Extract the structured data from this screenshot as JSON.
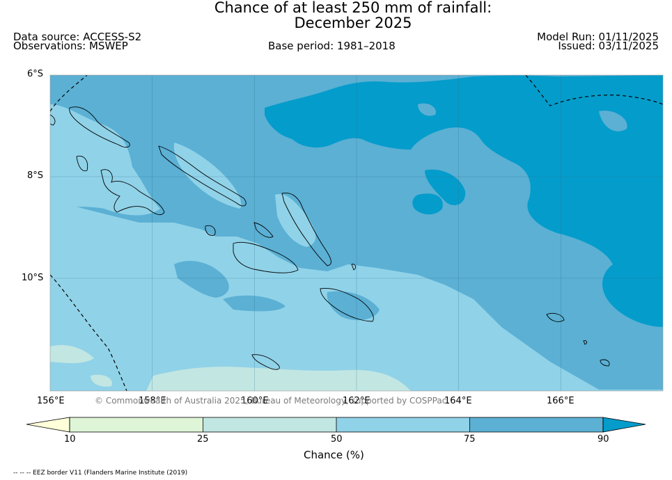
{
  "title": {
    "line1": "Chance of at least 250 mm of rainfall:",
    "line2": "December 2025"
  },
  "meta": {
    "data_source": "Data source: ACCESS-S2",
    "observations": "Observations: MSWEP",
    "base_period": "Base period: 1981–2018",
    "model_run": "Model Run: 01/11/2025",
    "issued": "Issued: 03/11/2025"
  },
  "map": {
    "lat_labels": [
      "6°S",
      "8°S",
      "10°S"
    ],
    "lon_labels": [
      "156°E",
      "158°E",
      "160°E",
      "162°E",
      "164°E",
      "166°E"
    ],
    "credit": "© Commonwealth of Australia 2025, Bureau of Meteorology, supported by COSPPac",
    "colors": {
      "c_10_25": "#dff5d8",
      "c_25_50": "#c2e6e2",
      "c_50_75": "#90d2e8",
      "c_75_90": "#5bb0d4",
      "c_90_plus": "#049ccb",
      "below_10": "#ffffd9"
    }
  },
  "colorbar": {
    "ticks": [
      "10",
      "25",
      "50",
      "75",
      "90"
    ],
    "label": "Chance (%)"
  },
  "footer": {
    "eez_note": "-- -- -- EEZ border V11 (Flanders Marine Institute (2019)"
  }
}
